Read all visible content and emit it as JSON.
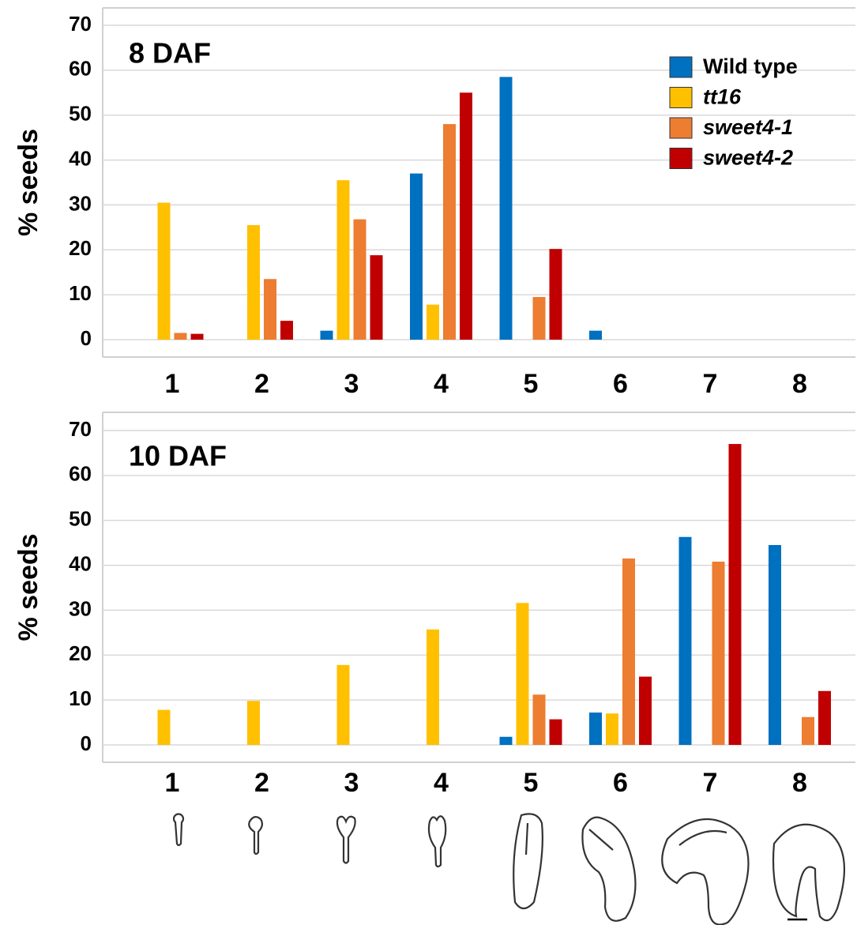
{
  "chart_data": [
    {
      "type": "bar",
      "title": "8 DAF",
      "y_label": "% seeds",
      "categories": [
        "1",
        "2",
        "3",
        "4",
        "5",
        "6",
        "7",
        "8"
      ],
      "series": [
        {
          "name": "Wild type",
          "color": "#0070c0",
          "values": [
            0,
            0,
            2,
            37,
            58.5,
            2,
            0,
            0
          ]
        },
        {
          "name": "tt16",
          "color": "#ffc000",
          "values": [
            30.5,
            25.5,
            35.5,
            7.8,
            0,
            0,
            0,
            0
          ]
        },
        {
          "name": "sweet4-1",
          "color": "#ed7d31",
          "values": [
            1.5,
            13.5,
            26.8,
            48,
            9.5,
            0,
            0,
            0
          ]
        },
        {
          "name": "sweet4-2",
          "color": "#c00000",
          "values": [
            1.3,
            4.2,
            18.8,
            55,
            20.2,
            0,
            0,
            0
          ]
        }
      ],
      "ylim": [
        0,
        70
      ],
      "yticks": [
        0,
        10,
        20,
        30,
        40,
        50,
        60,
        70
      ],
      "grid": true,
      "legend": "upper right"
    },
    {
      "type": "bar",
      "title": "10 DAF",
      "y_label": "% seeds",
      "categories": [
        "1",
        "2",
        "3",
        "4",
        "5",
        "6",
        "7",
        "8"
      ],
      "series": [
        {
          "color": "#0070c0",
          "values": [
            0,
            0,
            0,
            0,
            1.8,
            7.2,
            46.3,
            44.5
          ]
        },
        {
          "color": "#ffc000",
          "values": [
            7.8,
            9.8,
            17.8,
            25.7,
            31.6,
            7,
            0,
            0
          ]
        },
        {
          "color": "#ed7d31",
          "values": [
            0,
            0,
            0,
            0,
            11.2,
            41.5,
            40.8,
            6.2
          ]
        },
        {
          "color": "#c00000",
          "values": [
            0,
            0,
            0,
            0,
            5.7,
            15.2,
            67,
            12
          ]
        }
      ],
      "ylim": [
        0,
        70
      ],
      "yticks": [
        0,
        10,
        20,
        30,
        40,
        50,
        60,
        70
      ],
      "grid": true
    }
  ]
}
